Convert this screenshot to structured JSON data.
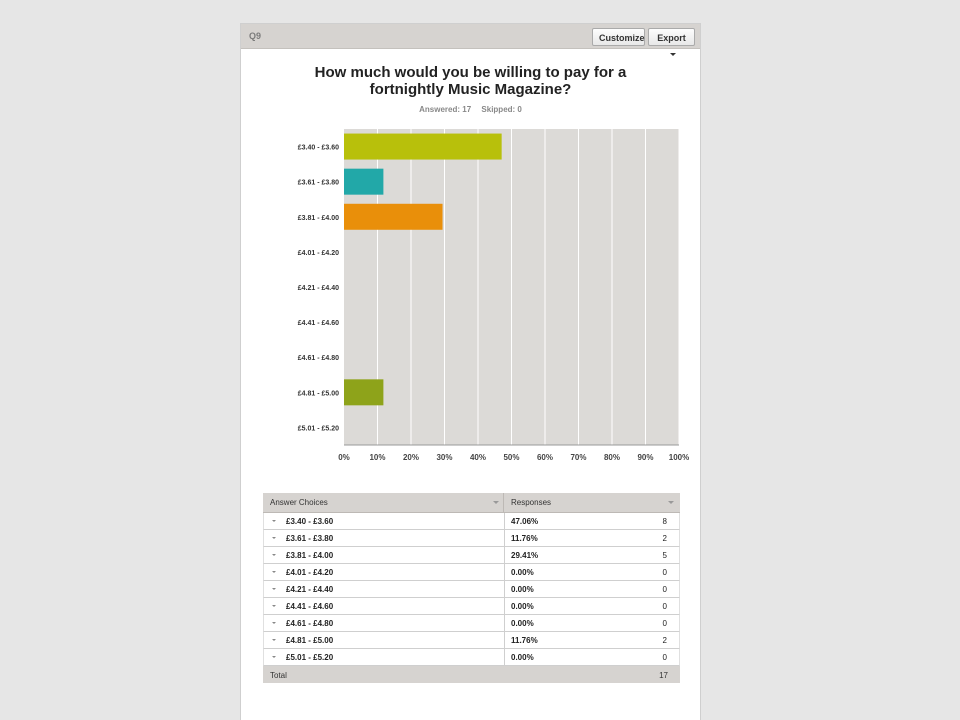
{
  "header": {
    "question_label": "Q9",
    "customize_label": "Customize",
    "export_label": "Export"
  },
  "question": {
    "title_line1": "How much would you be willing to pay for a",
    "title_line2": "fortnightly Music Magazine?",
    "answered": "Answered: 17",
    "skipped": "Skipped: 0"
  },
  "chart_data": {
    "type": "bar",
    "orientation": "horizontal",
    "categories": [
      "£3.40 - £3.60",
      "£3.61 - £3.80",
      "£3.81 - £4.00",
      "£4.01 - £4.20",
      "£4.21 - £4.40",
      "£4.41 - £4.60",
      "£4.61 - £4.80",
      "£4.81 - £5.00",
      "£5.01 - £5.20"
    ],
    "values": [
      47.06,
      11.76,
      29.41,
      0,
      0,
      0,
      0,
      11.76,
      0
    ],
    "colors": [
      "#b8c00b",
      "#22a8a8",
      "#e98f0a",
      "#777777",
      "#777777",
      "#777777",
      "#777777",
      "#8ea31a",
      "#777777"
    ],
    "xlim": [
      0,
      100
    ],
    "xticks": [
      "0%",
      "10%",
      "20%",
      "30%",
      "40%",
      "50%",
      "60%",
      "70%",
      "80%",
      "90%",
      "100%"
    ],
    "grid": true,
    "plot_background": "#dcdad7"
  },
  "table": {
    "col1_header": "Answer Choices",
    "col2_header": "Responses",
    "rows": [
      {
        "label": "£3.40 - £3.60",
        "pct": "47.06%",
        "count": "8"
      },
      {
        "label": "£3.61 - £3.80",
        "pct": "11.76%",
        "count": "2"
      },
      {
        "label": "£3.81 - £4.00",
        "pct": "29.41%",
        "count": "5"
      },
      {
        "label": "£4.01 - £4.20",
        "pct": "0.00%",
        "count": "0"
      },
      {
        "label": "£4.21 - £4.40",
        "pct": "0.00%",
        "count": "0"
      },
      {
        "label": "£4.41 - £4.60",
        "pct": "0.00%",
        "count": "0"
      },
      {
        "label": "£4.61 - £4.80",
        "pct": "0.00%",
        "count": "0"
      },
      {
        "label": "£4.81 - £5.00",
        "pct": "11.76%",
        "count": "2"
      },
      {
        "label": "£5.01 - £5.20",
        "pct": "0.00%",
        "count": "0"
      }
    ],
    "total_label": "Total",
    "total_count": "17"
  }
}
